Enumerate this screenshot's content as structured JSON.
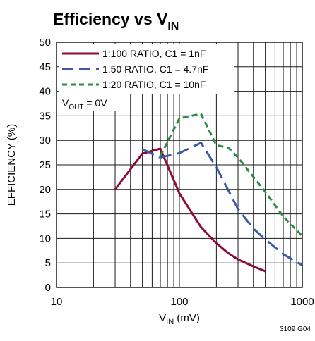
{
  "chart_data": {
    "type": "line",
    "title": {
      "main": "Efficiency vs V",
      "sub": "IN"
    },
    "xlabel": {
      "main": "V",
      "sub": "IN",
      "rest": " (mV)"
    },
    "ylabel": "EFFICIENCY (%)",
    "x_scale": "log",
    "xlim": [
      10,
      1000
    ],
    "ylim": [
      0,
      50
    ],
    "x_ticks": [
      10,
      100,
      1000
    ],
    "y_ticks": [
      0,
      5,
      10,
      15,
      20,
      25,
      30,
      35,
      40,
      45,
      50
    ],
    "grid": true,
    "legend_position": "top-left",
    "annotation": {
      "main": "V",
      "sub": "OUT",
      "rest": " = 0V"
    },
    "series": [
      {
        "name": "1:100 RATIO, C1 = 1nF",
        "color": "#8b0d33",
        "dash": "solid",
        "x": [
          30,
          50,
          70,
          100,
          150,
          200,
          250,
          300,
          400,
          500
        ],
        "y": [
          20,
          27.3,
          28.3,
          19.2,
          12.3,
          9.0,
          7.0,
          5.7,
          4.3,
          3.3
        ]
      },
      {
        "name": "1:50 RATIO, C1 = 4.7nF",
        "color": "#3b5aa3",
        "dash": "long-dash",
        "x": [
          50,
          70,
          100,
          150,
          200,
          300,
          400,
          500,
          700,
          1000
        ],
        "y": [
          28.2,
          26.5,
          27.4,
          29.5,
          24.5,
          16.0,
          12.0,
          9.8,
          6.8,
          4.5
        ]
      },
      {
        "name": "1:20 RATIO, C1 = 10nF",
        "color": "#2f8a47",
        "dash": "short-dash",
        "x": [
          70,
          100,
          150,
          200,
          250,
          300,
          500,
          700,
          1000
        ],
        "y": [
          26.8,
          34.5,
          35.4,
          29.0,
          28.5,
          26.5,
          19.5,
          14.5,
          10.5
        ]
      }
    ]
  },
  "figure_code": "3109 G04"
}
